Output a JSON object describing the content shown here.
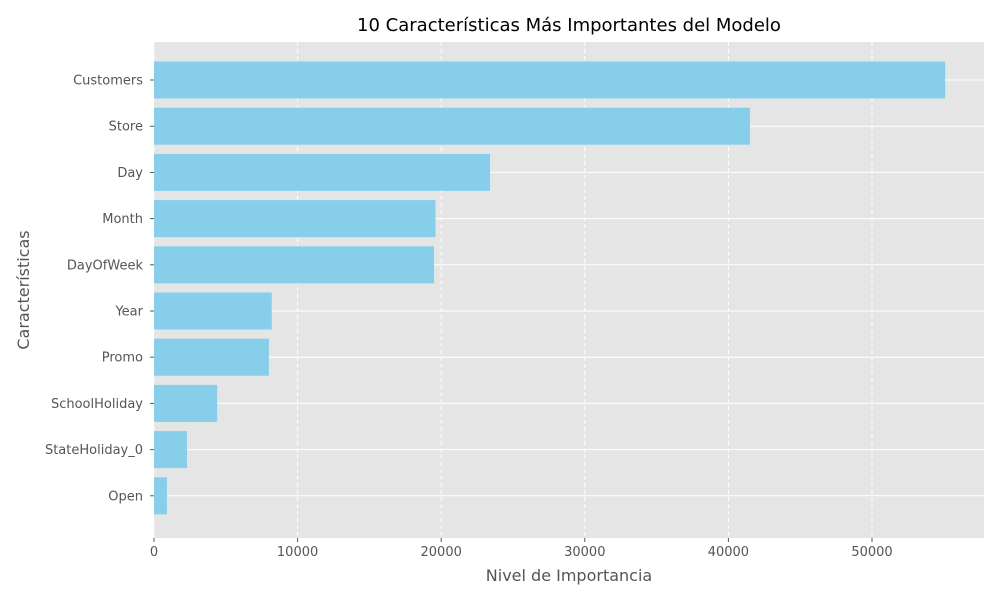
{
  "chart_data": {
    "type": "bar",
    "orientation": "horizontal",
    "title": "10 Características Más Importantes del Modelo",
    "xlabel": "Nivel de Importancia",
    "ylabel": "Características",
    "categories": [
      "Customers",
      "Store",
      "Day",
      "Month",
      "DayOfWeek",
      "Year",
      "Promo",
      "SchoolHoliday",
      "StateHoliday_0",
      "Open"
    ],
    "values": [
      55100,
      41500,
      23400,
      19600,
      19500,
      8200,
      8000,
      4400,
      2300,
      900
    ],
    "xlim": [
      0,
      57800
    ],
    "xticks": [
      0,
      10000,
      20000,
      30000,
      40000,
      50000
    ],
    "grid": "x-dashed",
    "legend": "none",
    "colors": {
      "bar": "#87ceeb",
      "plot_background": "#e5e5e5",
      "grid": "#ffffff"
    }
  }
}
